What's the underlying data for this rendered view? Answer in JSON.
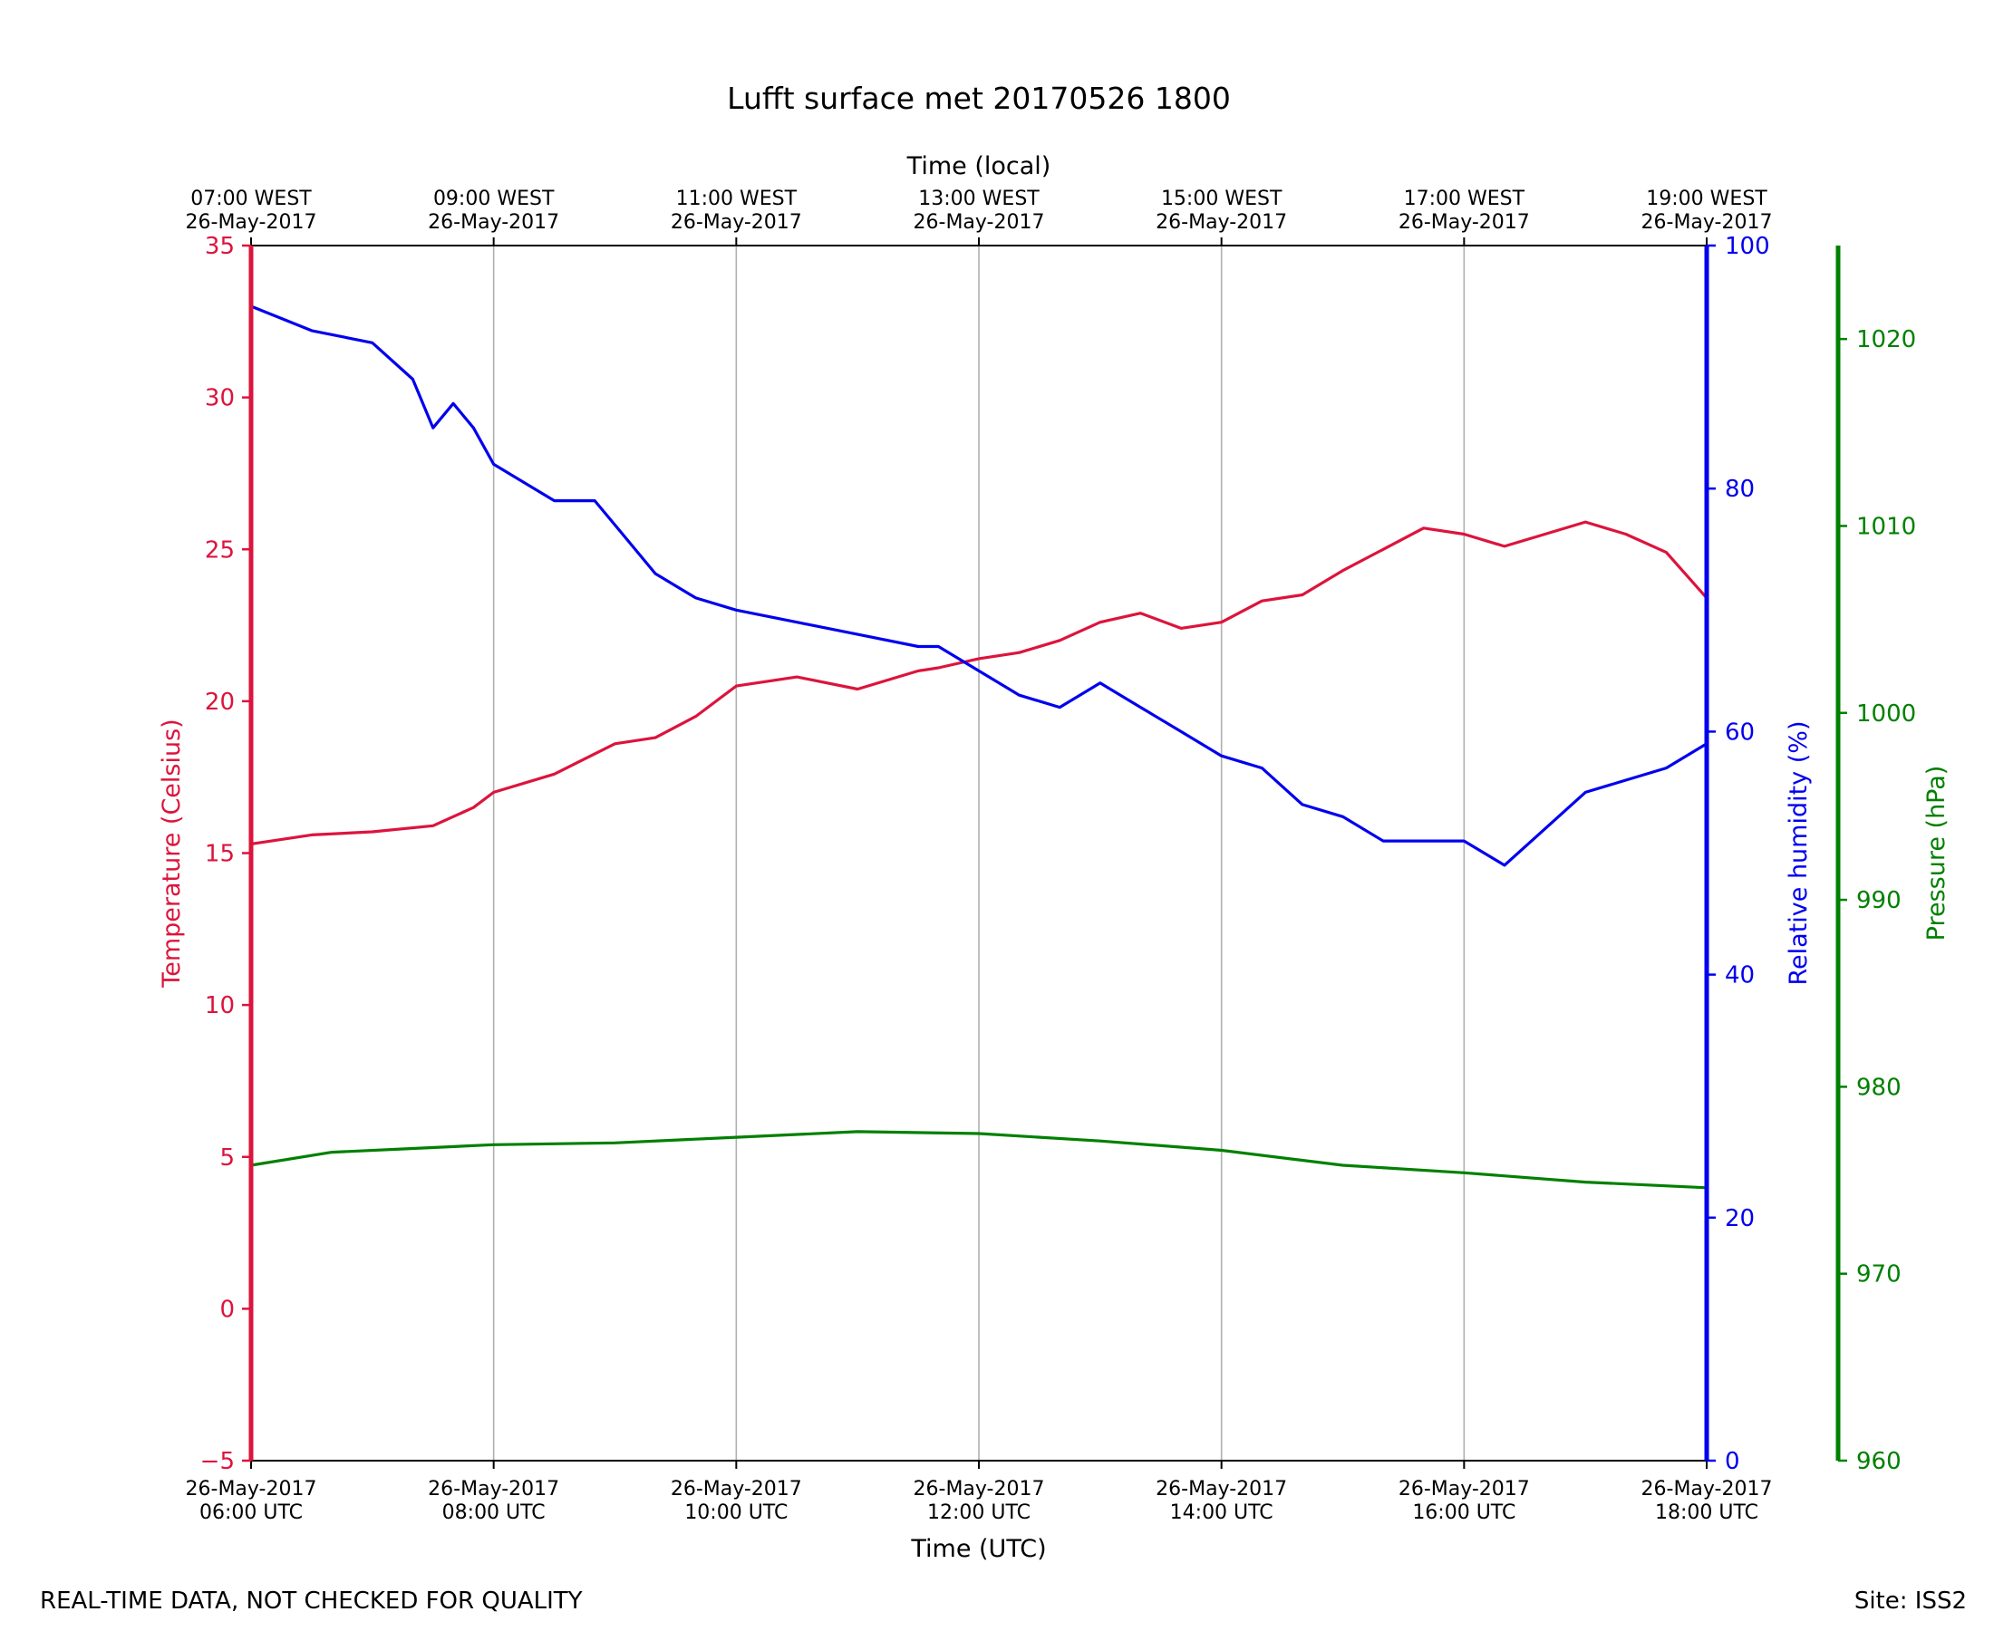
{
  "chart_data": {
    "type": "line",
    "title": "Lufft surface met 20170526 1800",
    "xlabel": "Time (UTC)",
    "x2label": "Time (local)",
    "x_range": [
      "2017-05-26T06:00:00Z",
      "2017-05-26T18:00:00Z"
    ],
    "x_ticks": [
      {
        "t": "2017-05-26T06:00:00Z",
        "bottom": [
          "26-May-2017",
          "06:00 UTC"
        ],
        "top": [
          "07:00 WEST",
          "26-May-2017"
        ]
      },
      {
        "t": "2017-05-26T08:00:00Z",
        "bottom": [
          "26-May-2017",
          "08:00 UTC"
        ],
        "top": [
          "09:00 WEST",
          "26-May-2017"
        ]
      },
      {
        "t": "2017-05-26T10:00:00Z",
        "bottom": [
          "26-May-2017",
          "10:00 UTC"
        ],
        "top": [
          "11:00 WEST",
          "26-May-2017"
        ]
      },
      {
        "t": "2017-05-26T12:00:00Z",
        "bottom": [
          "26-May-2017",
          "12:00 UTC"
        ],
        "top": [
          "13:00 WEST",
          "26-May-2017"
        ]
      },
      {
        "t": "2017-05-26T14:00:00Z",
        "bottom": [
          "26-May-2017",
          "14:00 UTC"
        ],
        "top": [
          "15:00 WEST",
          "26-May-2017"
        ]
      },
      {
        "t": "2017-05-26T16:00:00Z",
        "bottom": [
          "26-May-2017",
          "16:00 UTC"
        ],
        "top": [
          "17:00 WEST",
          "26-May-2017"
        ]
      },
      {
        "t": "2017-05-26T18:00:00Z",
        "bottom": [
          "26-May-2017",
          "18:00 UTC"
        ],
        "top": [
          "19:00 WEST",
          "26-May-2017"
        ]
      }
    ],
    "grid": "vertical",
    "axes": {
      "temperature": {
        "label": "Temperature (Celsius)",
        "range": [
          -5,
          35
        ],
        "ticks": [
          -5,
          0,
          5,
          10,
          15,
          20,
          25,
          30,
          35
        ],
        "tick_labels": [
          "−5",
          "0",
          "5",
          "10",
          "15",
          "20",
          "25",
          "30",
          "35"
        ],
        "color": "#dc143c"
      },
      "humidity": {
        "label": "Relative humidity (%)",
        "range": [
          0,
          100
        ],
        "ticks": [
          0,
          20,
          40,
          60,
          80,
          100
        ],
        "tick_labels": [
          "0",
          "20",
          "40",
          "60",
          "80",
          "100"
        ],
        "color": "#0000ee"
      },
      "pressure": {
        "label": "Pressure (hPa)",
        "range": [
          960,
          1025
        ],
        "ticks": [
          960,
          970,
          980,
          990,
          1000,
          1010,
          1020
        ],
        "tick_labels": [
          "960",
          "970",
          "980",
          "990",
          "1000",
          "1010",
          "1020"
        ],
        "color": "#008000"
      }
    },
    "series": [
      {
        "axis": "temperature",
        "color": "#dc143c",
        "x": [
          "2017-05-26T06:00:00Z",
          "2017-05-26T06:30:00Z",
          "2017-05-26T07:00:00Z",
          "2017-05-26T07:30:00Z",
          "2017-05-26T07:50:00Z",
          "2017-05-26T08:00:00Z",
          "2017-05-26T08:30:00Z",
          "2017-05-26T09:00:00Z",
          "2017-05-26T09:20:00Z",
          "2017-05-26T09:40:00Z",
          "2017-05-26T10:00:00Z",
          "2017-05-26T10:30:00Z",
          "2017-05-26T11:00:00Z",
          "2017-05-26T11:30:00Z",
          "2017-05-26T11:40:00Z",
          "2017-05-26T12:00:00Z",
          "2017-05-26T12:20:00Z",
          "2017-05-26T12:40:00Z",
          "2017-05-26T13:00:00Z",
          "2017-05-26T13:20:00Z",
          "2017-05-26T13:40:00Z",
          "2017-05-26T14:00:00Z",
          "2017-05-26T14:20:00Z",
          "2017-05-26T14:40:00Z",
          "2017-05-26T15:00:00Z",
          "2017-05-26T15:20:00Z",
          "2017-05-26T15:40:00Z",
          "2017-05-26T16:00:00Z",
          "2017-05-26T16:20:00Z",
          "2017-05-26T16:40:00Z",
          "2017-05-26T17:00:00Z",
          "2017-05-26T17:20:00Z",
          "2017-05-26T17:40:00Z",
          "2017-05-26T18:00:00Z"
        ],
        "values": [
          15.3,
          15.6,
          15.7,
          15.9,
          16.5,
          17.0,
          17.6,
          18.6,
          18.8,
          19.5,
          20.5,
          20.8,
          20.4,
          21.0,
          21.1,
          21.4,
          21.6,
          22.0,
          22.6,
          22.9,
          22.4,
          22.6,
          23.3,
          23.5,
          24.3,
          25.0,
          25.7,
          25.5,
          25.1,
          25.5,
          25.9,
          25.5,
          24.9,
          23.4
        ]
      },
      {
        "axis": "humidity",
        "color": "#0000ee",
        "x": [
          "2017-05-26T06:00:00Z",
          "2017-05-26T06:30:00Z",
          "2017-05-26T07:00:00Z",
          "2017-05-26T07:20:00Z",
          "2017-05-26T07:30:00Z",
          "2017-05-26T07:40:00Z",
          "2017-05-26T07:50:00Z",
          "2017-05-26T08:00:00Z",
          "2017-05-26T08:30:00Z",
          "2017-05-26T08:50:00Z",
          "2017-05-26T09:00:00Z",
          "2017-05-26T09:20:00Z",
          "2017-05-26T09:40:00Z",
          "2017-05-26T10:00:00Z",
          "2017-05-26T10:30:00Z",
          "2017-05-26T11:00:00Z",
          "2017-05-26T11:30:00Z",
          "2017-05-26T11:40:00Z",
          "2017-05-26T12:00:00Z",
          "2017-05-26T12:20:00Z",
          "2017-05-26T12:40:00Z",
          "2017-05-26T13:00:00Z",
          "2017-05-26T13:20:00Z",
          "2017-05-26T13:40:00Z",
          "2017-05-26T14:00:00Z",
          "2017-05-26T14:20:00Z",
          "2017-05-26T14:40:00Z",
          "2017-05-26T15:00:00Z",
          "2017-05-26T15:20:00Z",
          "2017-05-26T15:40:00Z",
          "2017-05-26T16:00:00Z",
          "2017-05-26T16:20:00Z",
          "2017-05-26T16:40:00Z",
          "2017-05-26T17:00:00Z",
          "2017-05-26T17:20:00Z",
          "2017-05-26T17:40:00Z",
          "2017-05-26T18:00:00Z"
        ],
        "values": [
          95,
          93,
          92,
          89,
          85,
          87,
          85,
          82,
          79,
          79,
          77,
          73,
          71,
          70,
          69,
          68,
          67,
          67,
          65,
          63,
          62,
          64,
          62,
          60,
          58,
          57,
          54,
          53,
          51,
          51,
          51,
          49,
          52,
          55,
          56,
          57,
          59
        ]
      },
      {
        "axis": "pressure",
        "color": "#008000",
        "x": [
          "2017-05-26T06:00:00Z",
          "2017-05-26T06:40:00Z",
          "2017-05-26T07:20:00Z",
          "2017-05-26T08:00:00Z",
          "2017-05-26T09:00:00Z",
          "2017-05-26T10:00:00Z",
          "2017-05-26T11:00:00Z",
          "2017-05-26T12:00:00Z",
          "2017-05-26T13:00:00Z",
          "2017-05-26T14:00:00Z",
          "2017-05-26T15:00:00Z",
          "2017-05-26T16:00:00Z",
          "2017-05-26T17:00:00Z",
          "2017-05-26T18:00:00Z"
        ],
        "values": [
          975.8,
          976.5,
          976.7,
          976.9,
          977.0,
          977.3,
          977.6,
          977.5,
          977.1,
          976.6,
          975.8,
          975.4,
          974.9,
          974.6
        ]
      }
    ]
  },
  "footer": {
    "left": "REAL-TIME DATA, NOT CHECKED FOR QUALITY",
    "right": "Site: ISS2"
  }
}
